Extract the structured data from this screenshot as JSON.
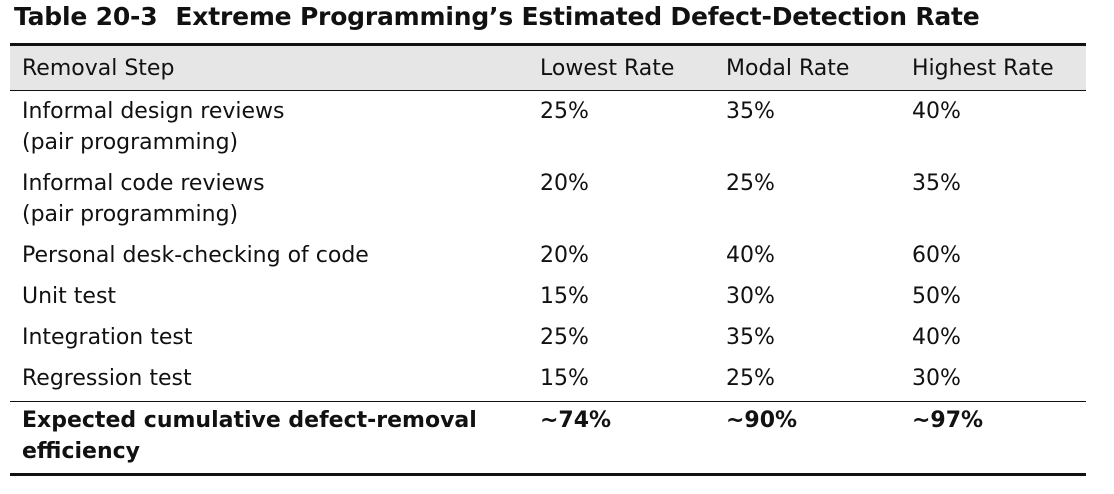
{
  "caption": {
    "number": "Table 20-3",
    "title": "Extreme Programming’s Estimated Defect-Detection Rate"
  },
  "table": {
    "headers": [
      "Removal Step",
      "Lowest Rate",
      "Modal Rate",
      "Highest Rate"
    ],
    "rows": [
      {
        "step": [
          "Informal design reviews",
          "(pair programming)"
        ],
        "lowest": "25%",
        "modal": "35%",
        "highest": "40%"
      },
      {
        "step": [
          "Informal code reviews",
          "(pair programming)"
        ],
        "lowest": "20%",
        "modal": "25%",
        "highest": "35%"
      },
      {
        "step": [
          "Personal desk-checking of code"
        ],
        "lowest": "20%",
        "modal": "40%",
        "highest": "60%"
      },
      {
        "step": [
          "Unit test"
        ],
        "lowest": "15%",
        "modal": "30%",
        "highest": "50%"
      },
      {
        "step": [
          "Integration test"
        ],
        "lowest": "25%",
        "modal": "35%",
        "highest": "40%"
      },
      {
        "step": [
          "Regression test"
        ],
        "lowest": "15%",
        "modal": "25%",
        "highest": "30%"
      }
    ],
    "total": {
      "step": [
        "Expected cumulative defect-removal",
        "efficiency"
      ],
      "lowest": "~74%",
      "modal": "~90%",
      "highest": "~97%"
    }
  }
}
